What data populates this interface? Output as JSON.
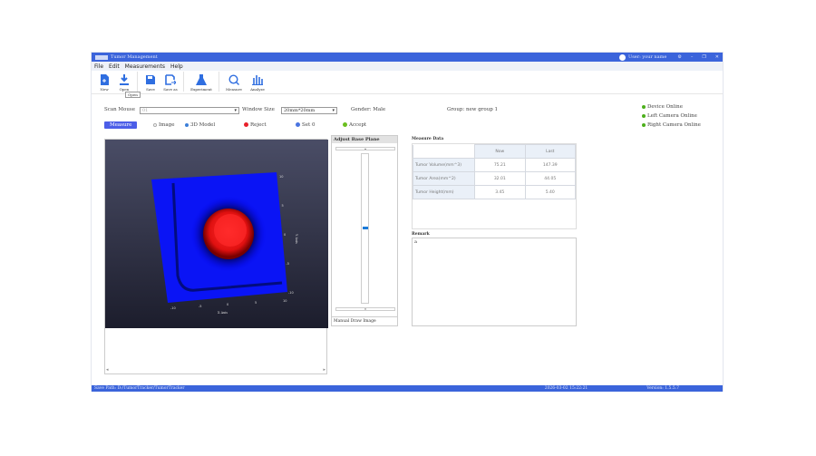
{
  "titlebar": {
    "title": "Tumor Management",
    "user": "User: your name",
    "controls": [
      "settings",
      "minimize",
      "restore",
      "close"
    ]
  },
  "menu": [
    "File",
    "Edit",
    "Measurements",
    "Help"
  ],
  "toolbar": {
    "items": [
      {
        "label": "New",
        "icon": "new-file-icon"
      },
      {
        "label": "Open",
        "icon": "download-icon"
      },
      {
        "label": "Save",
        "icon": "save-icon"
      },
      {
        "label": "Save as",
        "icon": "save-as-icon"
      },
      {
        "label": "Experiment",
        "icon": "flask-icon"
      },
      {
        "label": "Measure",
        "icon": "search-icon"
      },
      {
        "label": "Analyze",
        "icon": "bar-chart-icon"
      }
    ],
    "tooltip": "Open"
  },
  "form": {
    "scan_mouse_label": "Scan Mouse",
    "scan_mouse_value": "01",
    "window_size_label": "Window Size",
    "window_size_value": "20mm*20mm",
    "gender": "Gender: Male",
    "group": "Group: new group 1"
  },
  "controls": {
    "measure": "Measure",
    "image": "Image",
    "model": "3D Model",
    "reject": "Reject",
    "set0": "Set 0",
    "accept": "Accept"
  },
  "colors": {
    "accent": "#3b64db",
    "reject": "#e8202a",
    "set0": "#4a74e0",
    "accept": "#6bbf1f",
    "online": "#4caf1a"
  },
  "status": [
    "Device Online",
    "Left Camera Online",
    "Right Camera Online"
  ],
  "viewer": {
    "x_axis": "X Axis",
    "y_axis": "Y Axis",
    "x_ticks": [
      "-10",
      "-5",
      "0",
      "5",
      "10"
    ],
    "y_ticks": [
      "10",
      "5",
      "0",
      "-5",
      "-10"
    ]
  },
  "base_plane": {
    "title": "Adjust Base Plane",
    "slider_value": 0.5,
    "footer": "Manual Draw Image"
  },
  "measure": {
    "title": "Measure Data",
    "headers": [
      "",
      "Now",
      "Last"
    ],
    "rows": [
      [
        "Tumor Volume(mm^3)",
        "75.21",
        "147.39"
      ],
      [
        "Tumor Area(mm^2)",
        "32.01",
        "44.05"
      ],
      [
        "Tumor Height(mm)",
        "3.45",
        "5.40"
      ]
    ]
  },
  "remark": {
    "title": "Remark",
    "value": "a"
  },
  "statusbar": {
    "path": "Save Path: D:/TumorTracker/TumorTracker",
    "time": "2026-03-02 15:22:21",
    "version": "Version: 1.5.5.7"
  }
}
